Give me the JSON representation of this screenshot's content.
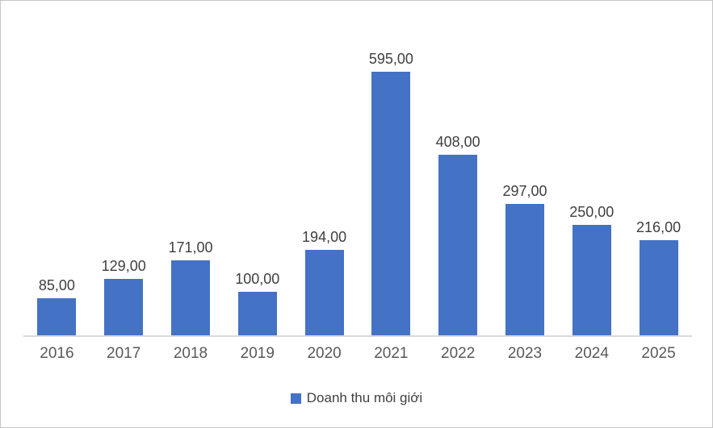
{
  "chart_data": {
    "type": "bar",
    "title": "",
    "xlabel": "",
    "ylabel": "",
    "categories": [
      "2016",
      "2017",
      "2018",
      "2019",
      "2020",
      "2021",
      "2022",
      "2023",
      "2024",
      "2025"
    ],
    "series": [
      {
        "name": "Doanh thu môi giới",
        "values": [
          85,
          129,
          171,
          100,
          194,
          595,
          408,
          297,
          250,
          216
        ],
        "labels": [
          "85,00",
          "129,00",
          "171,00",
          "100,00",
          "194,00",
          "595,00",
          "408,00",
          "297,00",
          "250,00",
          "216,00"
        ],
        "color": "#4472C4"
      }
    ],
    "ylim": [
      0,
      650
    ],
    "grid": "off",
    "y_axis_visible": false,
    "legend_position": "bottom"
  },
  "colors": {
    "bar": "#4472C4",
    "axis_line": "#D9D9D9",
    "data_label": "#3F3F3F",
    "category_label": "#595959",
    "background": "#FFFFFF",
    "frame_border": "#C6C6C6"
  }
}
